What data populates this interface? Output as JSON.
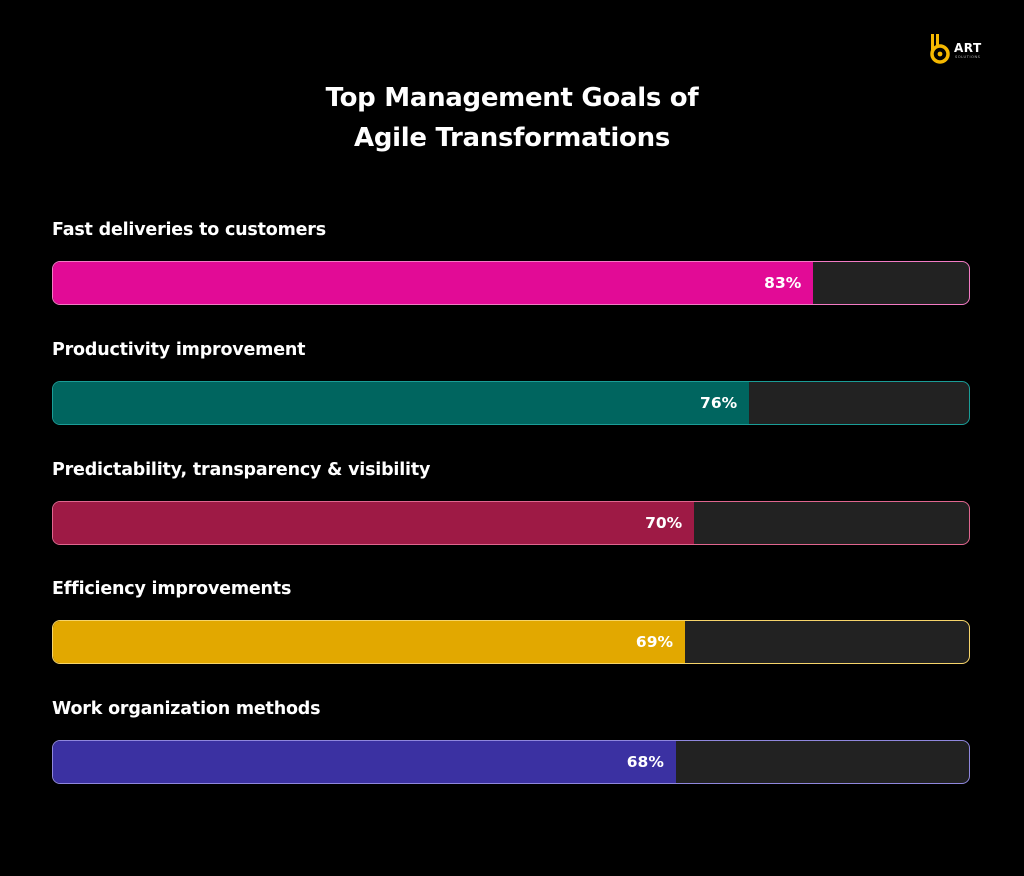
{
  "logo": {
    "brand": "ART",
    "tagline": "SOLUTIONS",
    "accent": "#f5b800"
  },
  "chart_data": {
    "type": "bar",
    "orientation": "horizontal",
    "title": [
      "Top Management Goals of",
      "Agile Transformations"
    ],
    "categories": [
      "Fast deliveries to customers",
      "Productivity improvement",
      "Predictability, transparency & visibility",
      "Efficiency improvements",
      "Work organization methods"
    ],
    "values": [
      83,
      76,
      70,
      69,
      68
    ],
    "value_labels": [
      "83%",
      "76%",
      "70%",
      "69%",
      "68%"
    ],
    "unit": "%",
    "xlim": [
      0,
      100
    ],
    "colors": [
      "#e20b96",
      "#00655f",
      "#9e1a45",
      "#e2a800",
      "#3b31a2"
    ],
    "border_colors": [
      "#f27bc4",
      "#1a9d97",
      "#e0668f",
      "#f6d46a",
      "#8f87dd"
    ],
    "track_color": "#222222",
    "grid": false,
    "legend": "none"
  }
}
